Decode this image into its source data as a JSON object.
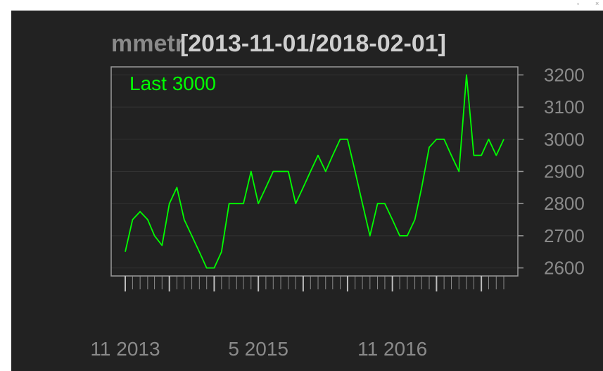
{
  "chart_data": {
    "type": "line",
    "title_prefix": "mmetr",
    "title_range": "[2013-11-01/2018-02-01]",
    "legend_label": "Last 3000",
    "x": [
      "2013-11-01",
      "2013-12-01",
      "2014-01-01",
      "2014-02-01",
      "2014-03-01",
      "2014-04-01",
      "2014-05-01",
      "2014-06-01",
      "2014-07-01",
      "2014-08-01",
      "2014-09-01",
      "2014-10-01",
      "2014-11-01",
      "2014-12-01",
      "2015-01-01",
      "2015-02-01",
      "2015-03-01",
      "2015-04-01",
      "2015-05-01",
      "2015-06-01",
      "2015-07-01",
      "2015-08-01",
      "2015-09-01",
      "2015-10-01",
      "2015-11-01",
      "2015-12-01",
      "2016-01-01",
      "2016-02-01",
      "2016-03-01",
      "2016-04-01",
      "2016-05-01",
      "2016-06-01",
      "2016-07-01",
      "2016-08-01",
      "2016-09-01",
      "2016-10-01",
      "2016-11-01",
      "2016-12-01",
      "2017-01-01",
      "2017-02-01",
      "2017-03-01",
      "2017-04-01",
      "2017-05-01",
      "2017-06-01",
      "2017-07-01",
      "2017-08-01",
      "2017-09-01",
      "2017-10-01",
      "2017-11-01",
      "2017-12-01",
      "2018-01-01",
      "2018-02-01"
    ],
    "series": [
      {
        "name": "Last",
        "color": "#00ff00",
        "values": [
          2650,
          2750,
          2775,
          2750,
          2700,
          2670,
          2800,
          2850,
          2750,
          2700,
          2650,
          2600,
          2600,
          2650,
          2800,
          2800,
          2800,
          2900,
          2800,
          2850,
          2900,
          2900,
          2900,
          2800,
          2850,
          2900,
          2950,
          2900,
          2950,
          3000,
          3000,
          2900,
          2800,
          2700,
          2800,
          2800,
          2750,
          2700,
          2700,
          2750,
          2850,
          2975,
          3000,
          3000,
          2950,
          2900,
          3200,
          2950,
          2950,
          3000,
          2950,
          3000
        ]
      }
    ],
    "ylim": [
      2575,
      3225
    ],
    "yticks": [
      2600,
      2700,
      2800,
      2900,
      3000,
      3100,
      3200
    ],
    "xtick_labels": [
      {
        "label": "11 2013",
        "date": "2013-11-01"
      },
      {
        "label": "5 2015",
        "date": "2015-05-01"
      },
      {
        "label": "11 2016",
        "date": "2016-11-01"
      }
    ],
    "major_tick_dates": [
      "2013-11-01",
      "2014-05-01",
      "2014-11-01",
      "2015-05-01",
      "2015-11-01",
      "2016-05-01",
      "2016-11-01",
      "2017-05-01",
      "2017-11-01"
    ],
    "grid": true,
    "legend_position": "top-left",
    "colors": {
      "background": "#222222",
      "grid": "#333333",
      "axis": "#9a9a9a",
      "text": "#8a8a8a",
      "line": "#00ff00"
    }
  }
}
